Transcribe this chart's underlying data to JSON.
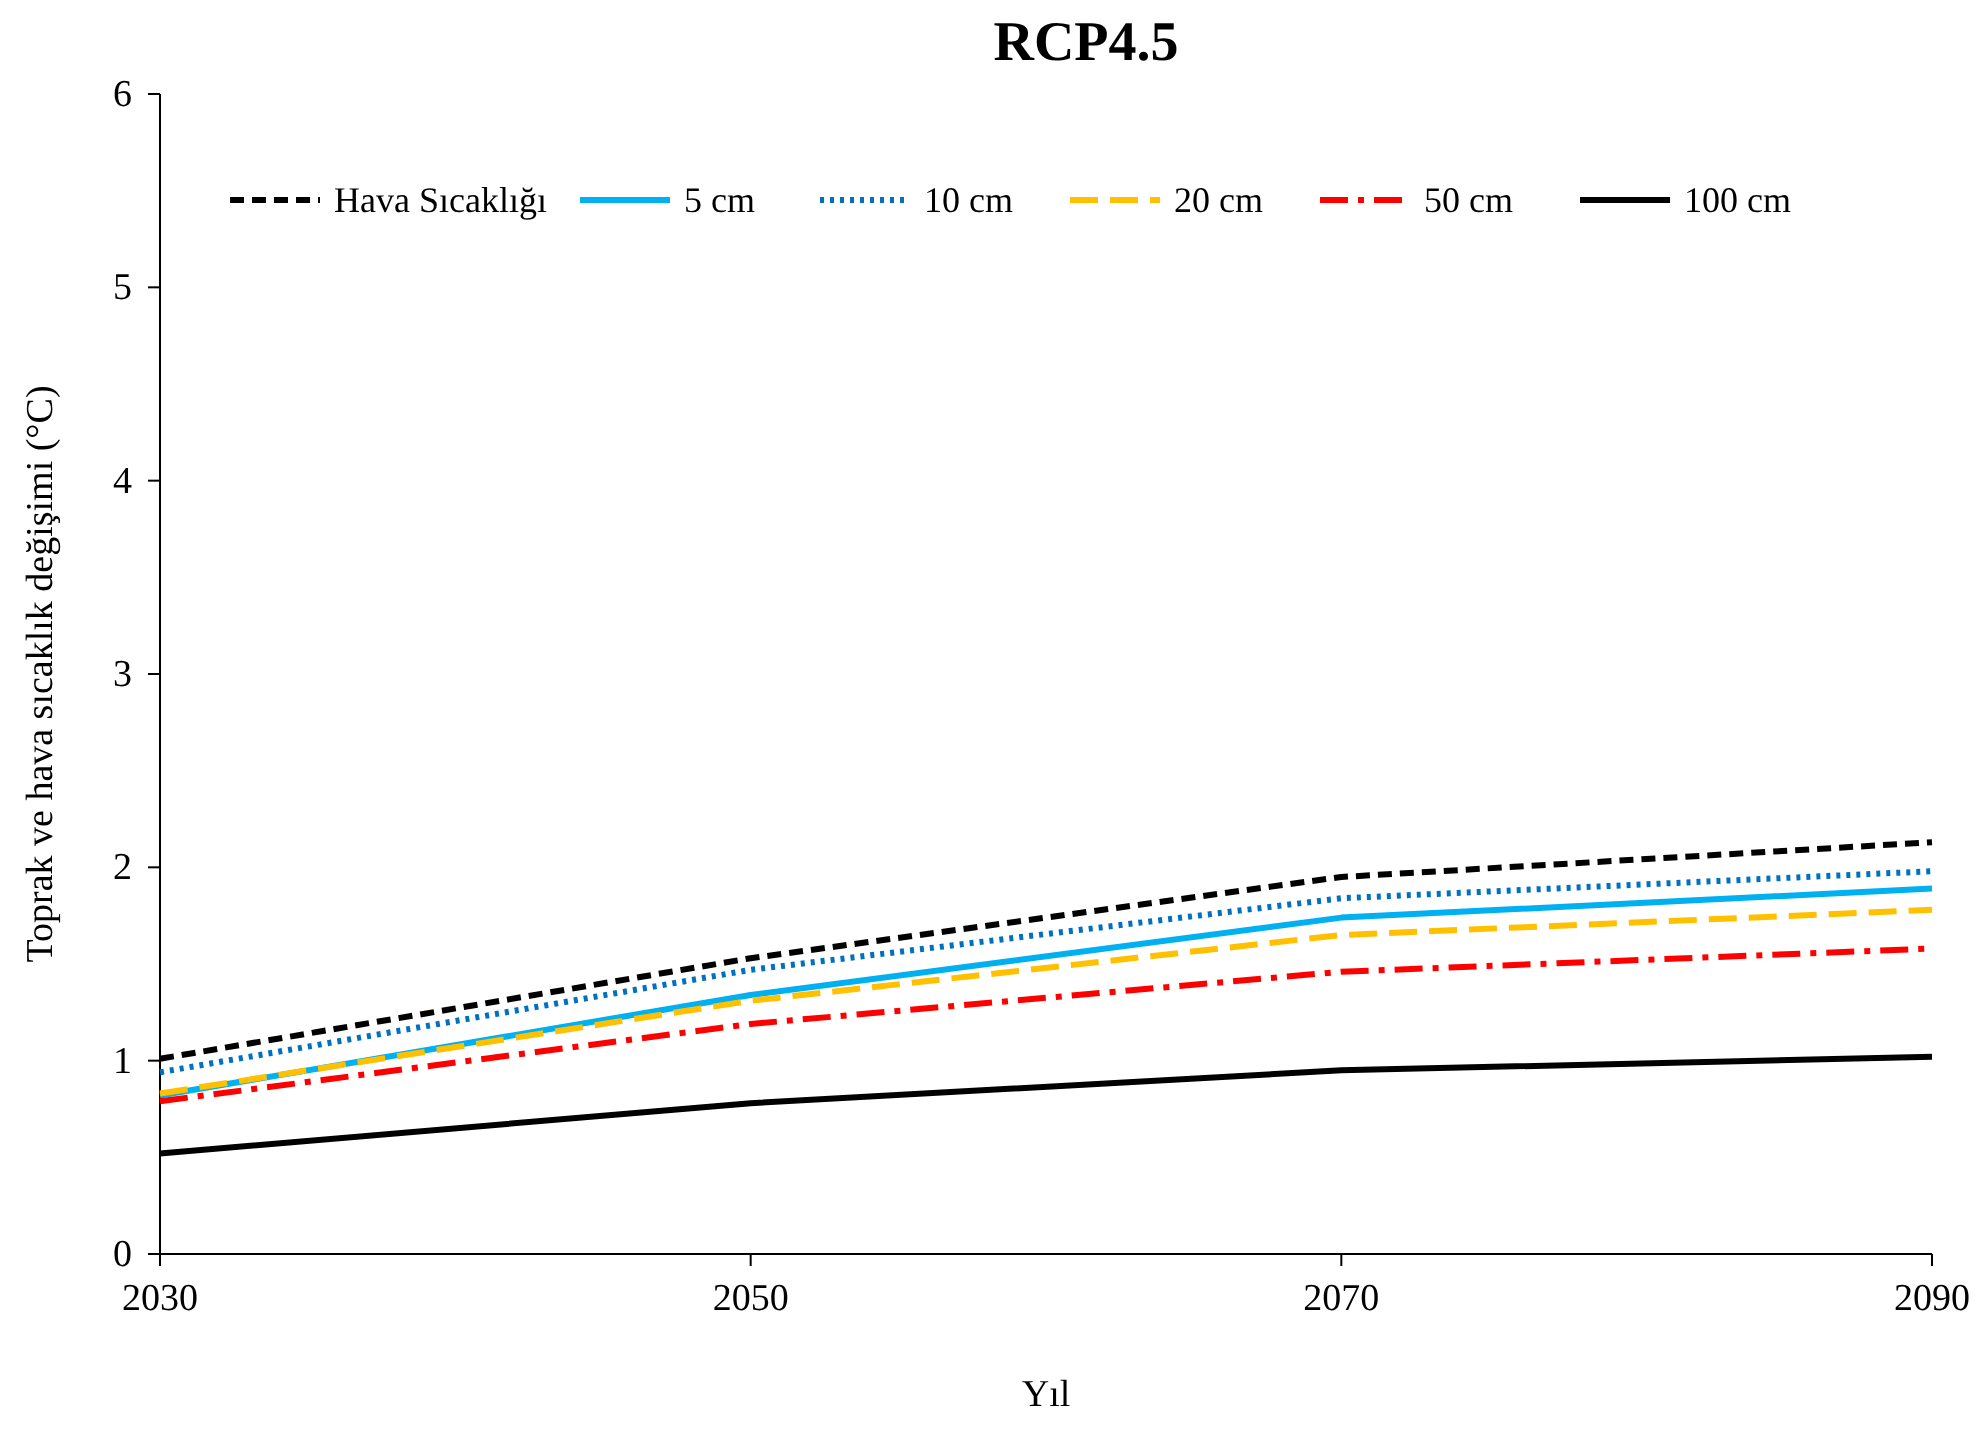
{
  "chart_data": {
    "type": "line",
    "title": "RCP4.5",
    "xlabel": "Yıl",
    "ylabel": "Toprak ve hava sıcaklık değişimi (°C)",
    "x": [
      2030,
      2050,
      2070,
      2090
    ],
    "xlim": [
      2030,
      2090
    ],
    "xticks": [
      2030,
      2050,
      2070,
      2090
    ],
    "ylim": [
      0,
      6
    ],
    "yticks": [
      0,
      1,
      2,
      3,
      4,
      5,
      6
    ],
    "grid": false,
    "legend": "top",
    "marker": "none",
    "series": [
      {
        "name": "Hava Sıcaklığı",
        "color": "#000000",
        "line_style": "dashed",
        "values": [
          1.01,
          1.53,
          1.95,
          2.13
        ]
      },
      {
        "name": "5 cm",
        "color": "#00b0f0",
        "line_style": "solid",
        "values": [
          0.82,
          1.34,
          1.74,
          1.89
        ]
      },
      {
        "name": "10 cm",
        "color": "#0070c0",
        "line_style": "dotted",
        "values": [
          0.94,
          1.47,
          1.84,
          1.98
        ]
      },
      {
        "name": "20 cm",
        "color": "#ffc000",
        "line_style": "longdash",
        "values": [
          0.83,
          1.31,
          1.65,
          1.78
        ]
      },
      {
        "name": "50 cm",
        "color": "#ff0000",
        "line_style": "dashdot",
        "values": [
          0.79,
          1.19,
          1.46,
          1.58
        ]
      },
      {
        "name": "100 cm",
        "color": "#000000",
        "line_style": "solid",
        "values": [
          0.52,
          0.78,
          0.95,
          1.02
        ]
      }
    ]
  }
}
